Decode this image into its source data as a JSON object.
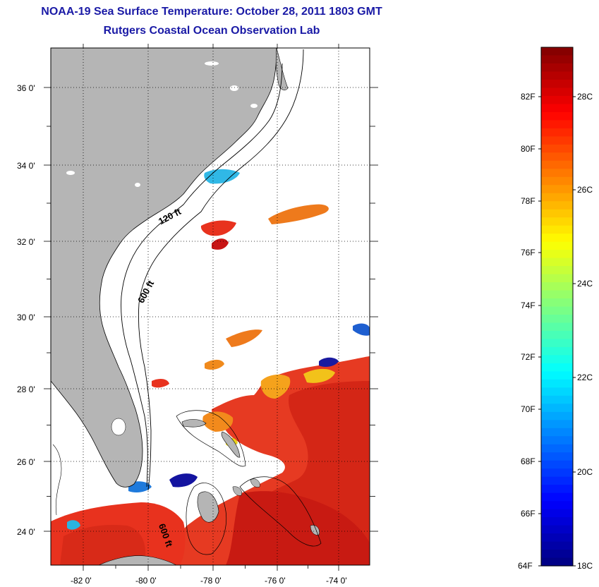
{
  "title": {
    "line1": "NOAA-19 Sea Surface Temperature:  October 28, 2011 1803 GMT",
    "line2": "Rutgers Coastal Ocean Observation Lab"
  },
  "map": {
    "lat_ticks": [
      "36 0'",
      "34 0'",
      "32 0'",
      "30 0'",
      "28 0'",
      "26 0'",
      "24 0'"
    ],
    "lon_ticks": [
      "-82 0'",
      "-80 0'",
      "-78 0'",
      "-76 0'",
      "-74 0'"
    ],
    "isobath_labels": [
      "120 ft",
      "600 ft",
      "600 ft"
    ],
    "colors": {
      "land": "#b5b5b5",
      "ocean_nodata": "#ffffff",
      "warm": "#e8321e",
      "hot": "#c81414",
      "orange": "#f08a1a",
      "cool": "#1e8cdc",
      "cold": "#1414a0"
    }
  },
  "colorbar": {
    "fahrenheit_labels": [
      "82F",
      "80F",
      "78F",
      "76F",
      "74F",
      "72F",
      "70F",
      "68F",
      "66F",
      "64F"
    ],
    "celsius_labels": [
      "28C",
      "26C",
      "24C",
      "22C",
      "20C",
      "18C"
    ],
    "colormap": "jet"
  }
}
